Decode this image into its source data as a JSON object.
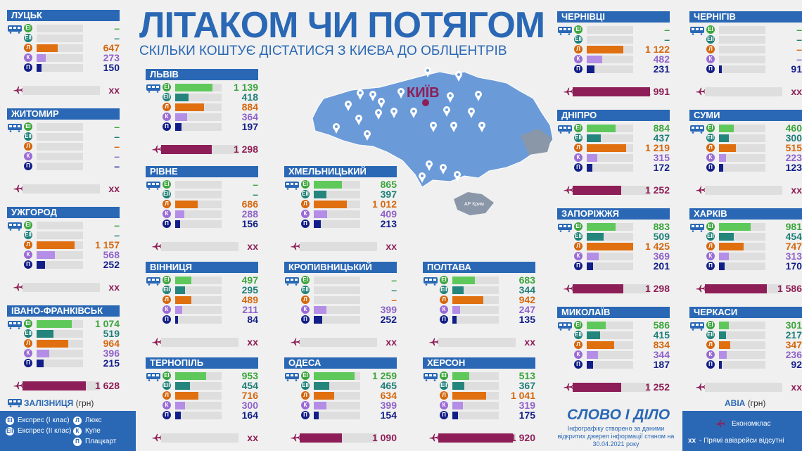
{
  "header": {
    "title": "ЛІТАКОМ ЧИ ПОТЯГОМ",
    "subtitle": "СКІЛЬКИ КОШТУЄ ДІСТАТИСЯ З КИЄВА ДО ОБЛЦЕНТРІВ"
  },
  "map": {
    "capital": "КИЇВ",
    "crimea": "АР Крим"
  },
  "colors": {
    "e1": "#5ec95a",
    "e2": "#24857d",
    "l": "#e0700f",
    "k": "#b48ee6",
    "p": "#121e87",
    "air": "#8e1e57",
    "header": "#2a68b5"
  },
  "badges": {
    "e1": "ЕІ",
    "e2": "ЕІІ",
    "l": "Л",
    "k": "К",
    "p": "П"
  },
  "chart_data": {
    "type": "bar",
    "classes": [
      "Експрес (І клас)",
      "Експрес (ІІ клас)",
      "Люкс",
      "Купе",
      "Плацкарт"
    ],
    "cities": [
      {
        "name": "ЛУЦЬК",
        "train": [
          "–",
          "–",
          "647",
          "273",
          "150"
        ],
        "air": "хх"
      },
      {
        "name": "ЖИТОМИР",
        "train": [
          "–",
          "–",
          "–",
          "–",
          "–"
        ],
        "air": "хх"
      },
      {
        "name": "УЖГОРОД",
        "train": [
          "–",
          "–",
          "1 157",
          "568",
          "252"
        ],
        "air": "хх"
      },
      {
        "name": "ІВАНО-ФРАНКІВСЬК",
        "train": [
          "1 074",
          "519",
          "964",
          "396",
          "215"
        ],
        "air": "1 628"
      },
      {
        "name": "ЛЬВІВ",
        "train": [
          "1 139",
          "418",
          "884",
          "364",
          "197"
        ],
        "air": "1 298"
      },
      {
        "name": "РІВНЕ",
        "train": [
          "–",
          "–",
          "686",
          "288",
          "156"
        ],
        "air": "хх"
      },
      {
        "name": "ВІННИЦЯ",
        "train": [
          "497",
          "295",
          "489",
          "211",
          "84"
        ],
        "air": "хх"
      },
      {
        "name": "ТЕРНОПІЛЬ",
        "train": [
          "953",
          "454",
          "716",
          "300",
          "164"
        ],
        "air": "хх"
      },
      {
        "name": "ХМЕЛЬНИЦЬКИЙ",
        "train": [
          "865",
          "397",
          "1 012",
          "409",
          "213"
        ],
        "air": "хх"
      },
      {
        "name": "КРОПИВНИЦЬКИЙ",
        "train": [
          "–",
          "–",
          "–",
          "399",
          "252"
        ],
        "air": "хх"
      },
      {
        "name": "ОДЕСА",
        "train": [
          "1 259",
          "465",
          "634",
          "399",
          "154"
        ],
        "air": "1 090"
      },
      {
        "name": "ПОЛТАВА",
        "train": [
          "683",
          "344",
          "942",
          "247",
          "135"
        ],
        "air": "хх"
      },
      {
        "name": "ХЕРСОН",
        "train": [
          "513",
          "367",
          "1 041",
          "319",
          "175"
        ],
        "air": "1 920"
      },
      {
        "name": "ЧЕРНІВЦІ",
        "train": [
          "–",
          "–",
          "1 122",
          "482",
          "231"
        ],
        "air": "1 991"
      },
      {
        "name": "ДНІПРО",
        "train": [
          "884",
          "437",
          "1 219",
          "315",
          "172"
        ],
        "air": "1 252"
      },
      {
        "name": "ЗАПОРІЖЖЯ",
        "train": [
          "883",
          "509",
          "1 425",
          "369",
          "201"
        ],
        "air": "1 298"
      },
      {
        "name": "МИКОЛАЇВ",
        "train": [
          "586",
          "415",
          "834",
          "344",
          "187"
        ],
        "air": "1 252"
      },
      {
        "name": "ЧЕРНІГІВ",
        "train": [
          "–",
          "–",
          "–",
          "–",
          "91"
        ],
        "air": "хх"
      },
      {
        "name": "СУМИ",
        "train": [
          "460",
          "300",
          "515",
          "223",
          "123"
        ],
        "air": "хх"
      },
      {
        "name": "ХАРКІВ",
        "train": [
          "981",
          "454",
          "747",
          "313",
          "170"
        ],
        "air": "1 586"
      },
      {
        "name": "ЧЕРКАСИ",
        "train": [
          "301",
          "217",
          "347",
          "236",
          "92"
        ],
        "air": "хх"
      }
    ]
  },
  "legend": {
    "rail_title": "ЗАЛІЗНИЦЯ",
    "rail_unit": "(грн)",
    "e1": "Експрес (І клас)",
    "e2": "Експрес (ІІ клас)",
    "l": "Люкс",
    "k": "Купе",
    "p": "Плацкарт",
    "air_title": "АВІА",
    "air_unit": "(грн)",
    "air_economy": "Економклас",
    "xx_key": "хх",
    "xx_note": "- Прямі авіарейси відсутні"
  },
  "footer": {
    "logo": "СЛОВО І ДІЛО",
    "note": "Інфографіку створено за даними відкритих джерел інформації станом на 30.04.2021 року"
  },
  "watermark": "СЛОВО І ДІЛО"
}
